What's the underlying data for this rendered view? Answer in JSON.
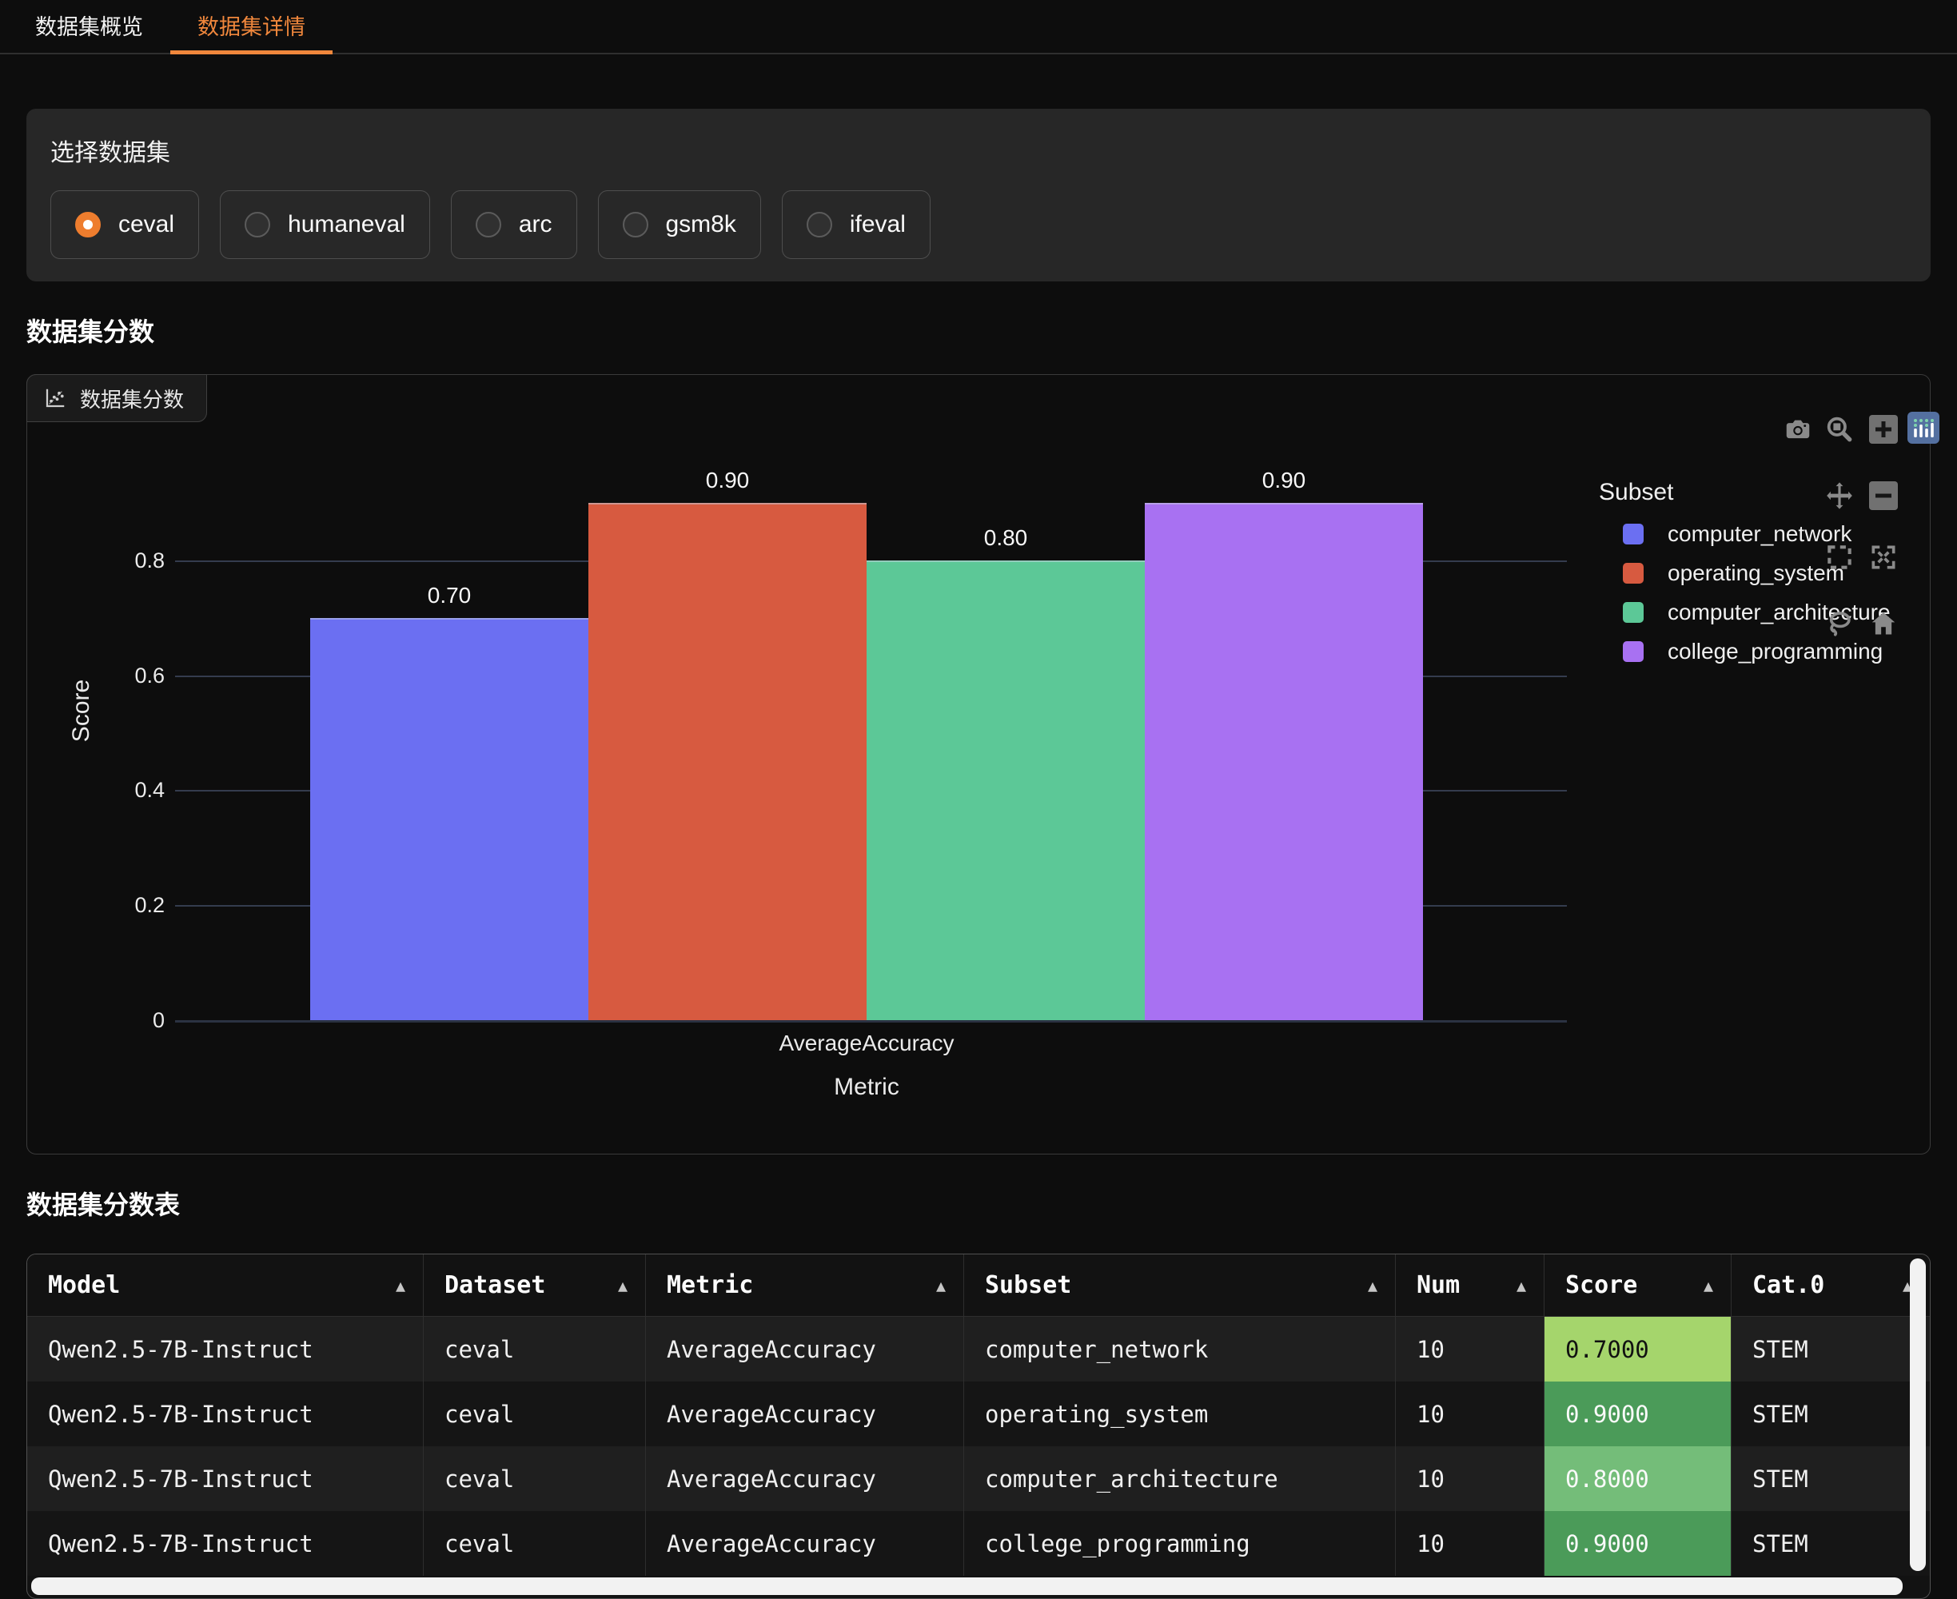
{
  "tabs": {
    "items": [
      {
        "id": "dataset-overview",
        "label": "数据集概览",
        "active": false
      },
      {
        "id": "dataset-details",
        "label": "数据集详情",
        "active": true
      }
    ]
  },
  "selector": {
    "label": "选择数据集",
    "options": [
      {
        "label": "ceval",
        "selected": true
      },
      {
        "label": "humaneval",
        "selected": false
      },
      {
        "label": "arc",
        "selected": false
      },
      {
        "label": "gsm8k",
        "selected": false
      },
      {
        "label": "ifeval",
        "selected": false
      }
    ]
  },
  "chart_section": {
    "heading": "数据集分数",
    "plot_tab_label": "数据集分数"
  },
  "chart_data": {
    "type": "bar",
    "categories": [
      "AverageAccuracy"
    ],
    "series": [
      {
        "name": "computer_network",
        "values": [
          0.7
        ],
        "label": "0.70",
        "color": "#6b6ff2"
      },
      {
        "name": "operating_system",
        "values": [
          0.9
        ],
        "label": "0.90",
        "color": "#d75a40"
      },
      {
        "name": "computer_architecture",
        "values": [
          0.8
        ],
        "label": "0.80",
        "color": "#5cc897"
      },
      {
        "name": "college_programming",
        "values": [
          0.9
        ],
        "label": "0.90",
        "color": "#a871f2"
      }
    ],
    "xlabel": "Metric",
    "ylabel": "Score",
    "ylim": [
      0,
      1.0
    ],
    "yticks": [
      0,
      0.2,
      0.4,
      0.6,
      0.8
    ],
    "ytick_labels": [
      "0",
      "0.2",
      "0.4",
      "0.6",
      "0.8"
    ],
    "legend_title": "Subset",
    "legend_position": "right",
    "grid": true
  },
  "modebar": {
    "icons": [
      "camera",
      "zoom",
      "zoom-in",
      "plotly-logo",
      "pan",
      "zoom-out",
      "box-select",
      "autoscale",
      "lasso",
      "reset-home"
    ]
  },
  "table_section": {
    "heading": "数据集分数表",
    "columns": [
      "Model",
      "Dataset",
      "Metric",
      "Subset",
      "Num",
      "Score",
      "Cat.0"
    ],
    "rows": [
      {
        "model": "Qwen2.5-7B-Instruct",
        "dataset": "ceval",
        "metric": "AverageAccuracy",
        "subset": "computer_network",
        "num": "10",
        "score": "0.7000",
        "score_bg": "#a5d56c",
        "score_fg": "#111111",
        "cat0": "STEM"
      },
      {
        "model": "Qwen2.5-7B-Instruct",
        "dataset": "ceval",
        "metric": "AverageAccuracy",
        "subset": "operating_system",
        "num": "10",
        "score": "0.9000",
        "score_bg": "#4b9b59",
        "score_fg": "#fafafa",
        "cat0": "STEM"
      },
      {
        "model": "Qwen2.5-7B-Instruct",
        "dataset": "ceval",
        "metric": "AverageAccuracy",
        "subset": "computer_architecture",
        "num": "10",
        "score": "0.8000",
        "score_bg": "#74bd79",
        "score_fg": "#fafafa",
        "cat0": "STEM"
      },
      {
        "model": "Qwen2.5-7B-Instruct",
        "dataset": "ceval",
        "metric": "AverageAccuracy",
        "subset": "college_programming",
        "num": "10",
        "score": "0.9000",
        "score_bg": "#4b9b59",
        "score_fg": "#fafafa",
        "cat0": "STEM"
      }
    ]
  },
  "colors": {
    "accent_orange": "#f0873c",
    "gridline": "#343c4e",
    "scrollbar": "#f2f2f2"
  }
}
